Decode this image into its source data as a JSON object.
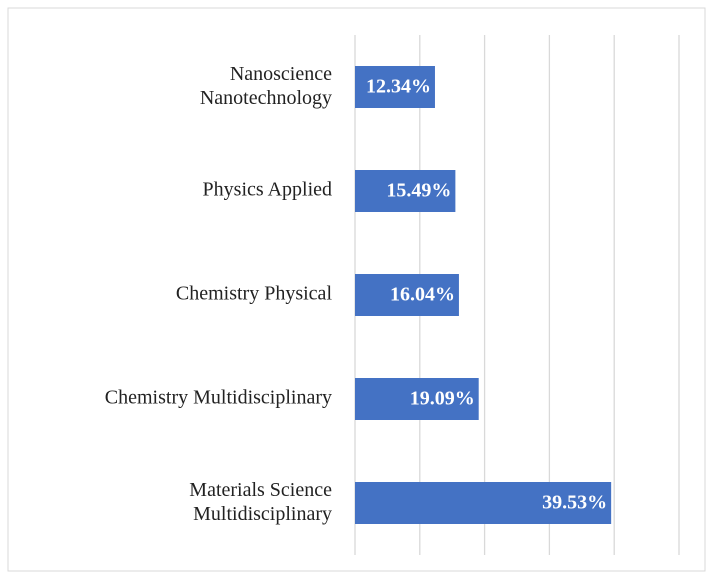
{
  "chart_data": {
    "type": "barh",
    "categories": [
      "Nanoscience\nNanotechnology",
      "Physics Applied",
      "Chemistry Physical",
      "Chemistry Multidisciplinary",
      "Materials Science\nMultidisciplinary"
    ],
    "values": [
      12.34,
      15.49,
      16.04,
      19.09,
      39.53
    ],
    "value_labels": [
      "12.34%",
      "15.49%",
      "16.04%",
      "19.09%",
      "39.53%"
    ],
    "color": "#4472c4",
    "xlim": [
      0,
      50
    ],
    "xticks": [
      0,
      10,
      20,
      30,
      40,
      50
    ],
    "grid": true
  }
}
